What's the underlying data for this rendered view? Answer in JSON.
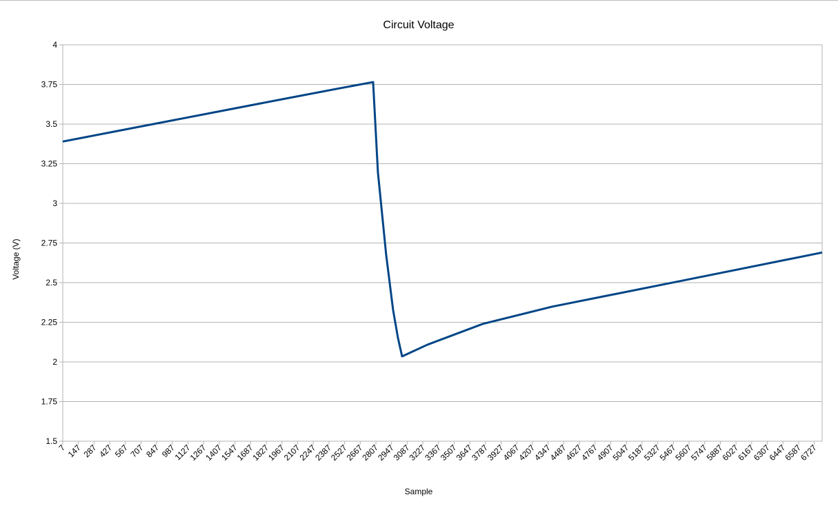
{
  "chart_data": {
    "type": "line",
    "title": "Circuit Voltage",
    "x_label": "Sample",
    "y_label": "Voltage (V)",
    "x": [
      7,
      500,
      1000,
      1500,
      2000,
      2500,
      2782,
      2825,
      2899,
      2961,
      3004,
      3041,
      3269,
      3763,
      4380,
      5613,
      6797
    ],
    "series": [
      {
        "name": "Voltage",
        "color": "#004586",
        "values": [
          3.39,
          3.457,
          3.525,
          3.593,
          3.661,
          3.728,
          3.765,
          3.196,
          2.674,
          2.326,
          2.152,
          2.035,
          2.109,
          2.24,
          2.348,
          2.522,
          2.69
        ]
      }
    ],
    "xlim": [
      7,
      6797
    ],
    "xticks": [
      7,
      147,
      287,
      427,
      567,
      707,
      847,
      987,
      1127,
      1267,
      1407,
      1547,
      1687,
      1827,
      1967,
      2107,
      2247,
      2387,
      2527,
      2667,
      2807,
      2947,
      3087,
      3227,
      3367,
      3507,
      3647,
      3787,
      3927,
      4067,
      4207,
      4347,
      4487,
      4627,
      4767,
      4907,
      5047,
      5187,
      5327,
      5467,
      5607,
      5747,
      5887,
      6027,
      6167,
      6307,
      6447,
      6587,
      6727
    ],
    "ylim": [
      1.5,
      4
    ],
    "yticks": [
      1.5,
      1.75,
      2,
      2.25,
      2.5,
      2.75,
      3,
      3.25,
      3.5,
      3.75,
      4
    ],
    "grid": true
  }
}
